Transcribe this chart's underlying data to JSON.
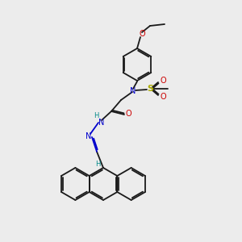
{
  "bg_color": "#ececec",
  "black": "#1a1a1a",
  "blue": "#0000cc",
  "red": "#cc0000",
  "yellow": "#aaaa00",
  "teal": "#008888",
  "lw": 1.3,
  "fig_width": 3.0,
  "fig_height": 3.0,
  "dpi": 100,
  "xlim": [
    0,
    300
  ],
  "ylim": [
    0,
    300
  ]
}
